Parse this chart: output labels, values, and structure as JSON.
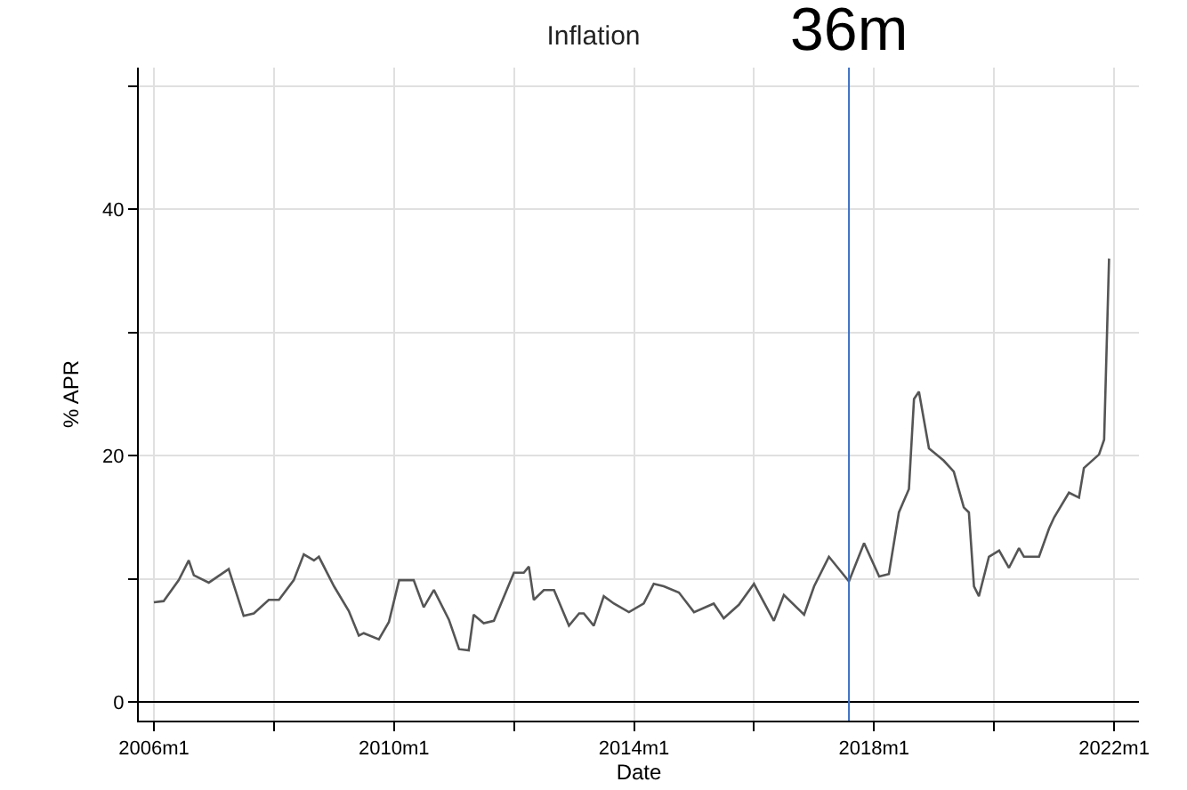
{
  "chart_data": {
    "type": "line",
    "title": "Inflation",
    "xlabel": "Date",
    "ylabel": "% APR",
    "x": [
      "2006-01",
      "2006-03",
      "2006-06",
      "2006-08",
      "2006-09",
      "2006-12",
      "2007-04",
      "2007-07",
      "2007-09",
      "2007-12",
      "2008-02",
      "2008-05",
      "2008-07",
      "2008-09",
      "2008-10",
      "2009-01",
      "2009-04",
      "2009-06",
      "2009-07",
      "2009-10",
      "2009-12",
      "2010-02",
      "2010-05",
      "2010-07",
      "2010-09",
      "2010-12",
      "2011-02",
      "2011-04",
      "2011-05",
      "2011-07",
      "2011-09",
      "2012-01",
      "2012-03",
      "2012-04",
      "2012-05",
      "2012-07",
      "2012-09",
      "2012-12",
      "2013-02",
      "2013-03",
      "2013-05",
      "2013-07",
      "2013-09",
      "2013-12",
      "2014-03",
      "2014-05",
      "2014-07",
      "2014-10",
      "2015-01",
      "2015-05",
      "2015-07",
      "2015-10",
      "2016-01",
      "2016-05",
      "2016-07",
      "2016-11",
      "2017-01",
      "2017-04",
      "2017-08",
      "2017-11",
      "2018-02",
      "2018-04",
      "2018-06",
      "2018-08",
      "2018-09",
      "2018-10",
      "2018-12",
      "2019-03",
      "2019-05",
      "2019-07",
      "2019-08",
      "2019-09",
      "2019-10",
      "2019-12",
      "2020-02",
      "2020-04",
      "2020-06",
      "2020-07",
      "2020-10",
      "2020-12",
      "2021-01",
      "2021-04",
      "2021-06",
      "2021-07",
      "2021-10",
      "2021-11",
      "2021-12"
    ],
    "series": [
      {
        "color": "#555555",
        "values": [
          8.1,
          8.2,
          9.9,
          11.5,
          10.3,
          9.7,
          10.8,
          7.0,
          7.2,
          8.3,
          8.3,
          9.9,
          12.0,
          11.5,
          11.8,
          9.4,
          7.4,
          5.4,
          5.6,
          5.1,
          6.5,
          9.9,
          9.9,
          7.7,
          9.1,
          6.7,
          4.3,
          4.2,
          7.1,
          6.4,
          6.6,
          10.5,
          10.5,
          11.0,
          8.3,
          9.1,
          9.1,
          6.2,
          7.2,
          7.2,
          6.2,
          8.6,
          8.0,
          7.3,
          8.0,
          9.6,
          9.4,
          8.9,
          7.3,
          8.0,
          6.8,
          7.9,
          9.6,
          6.6,
          8.7,
          7.1,
          9.4,
          11.8,
          9.8,
          12.9,
          10.2,
          10.4,
          15.4,
          17.3,
          24.6,
          25.2,
          20.6,
          19.6,
          18.7,
          15.8,
          15.4,
          9.4,
          8.6,
          11.8,
          12.3,
          10.9,
          12.5,
          11.8,
          11.8,
          14.1,
          15.0,
          17.0,
          16.6,
          19.0,
          20.1,
          21.3,
          36.0
        ]
      }
    ],
    "xlim": [
      "2005-10",
      "2022-06"
    ],
    "xticks": [
      {
        "value": "2006-01",
        "label": "2006m1"
      },
      {
        "value": "2008-01",
        "label": null
      },
      {
        "value": "2010-01",
        "label": "2010m1"
      },
      {
        "value": "2012-01",
        "label": null
      },
      {
        "value": "2014-01",
        "label": "2014m1"
      },
      {
        "value": "2016-01",
        "label": null
      },
      {
        "value": "2018-01",
        "label": "2018m1"
      },
      {
        "value": "2020-01",
        "label": null
      },
      {
        "value": "2022-01",
        "label": "2022m1"
      }
    ],
    "ylim": [
      -1.5,
      51.5
    ],
    "yticks": [
      0,
      {
        "value": 10,
        "label": null
      },
      20,
      {
        "value": 30,
        "label": null
      },
      40,
      {
        "value": 50,
        "label": null
      }
    ],
    "grid": true,
    "marker": "none",
    "line_style": "solid",
    "ref_lines": [
      {
        "axis": "x",
        "value": "2017-08",
        "label": "36m",
        "color": "#3a6fc4"
      }
    ]
  }
}
